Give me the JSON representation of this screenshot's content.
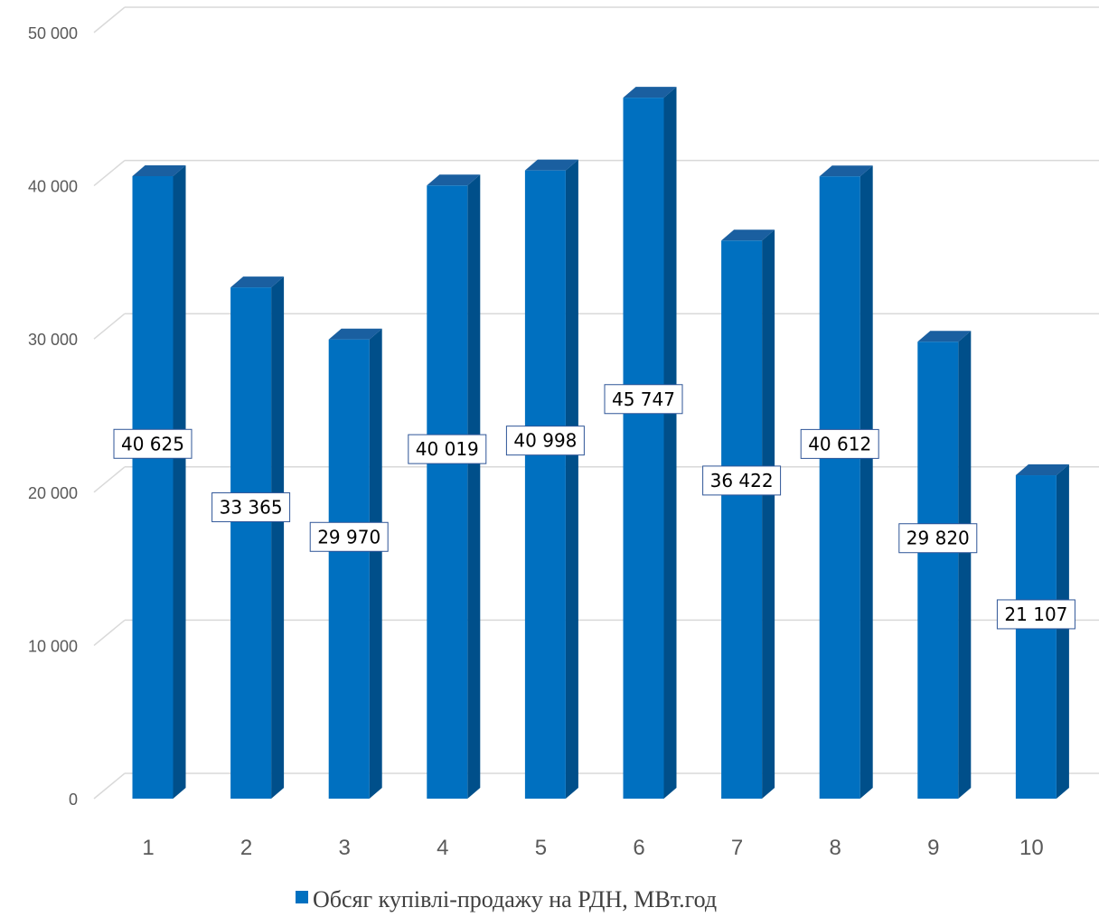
{
  "chart_data": {
    "type": "bar",
    "bar_style": "3d-column",
    "categories": [
      "1",
      "2",
      "3",
      "4",
      "5",
      "6",
      "7",
      "8",
      "9",
      "10"
    ],
    "series": [
      {
        "name": "Обсяг купівлі-продажу на РДН, МВт.год",
        "color": "#0070C0",
        "values": [
          40625,
          33365,
          29970,
          40019,
          40998,
          45747,
          36422,
          40612,
          29820,
          21107
        ],
        "labels": [
          "40 625",
          "33 365",
          "29 970",
          "40 019",
          "40 998",
          "45 747",
          "36 422",
          "40 612",
          "29 820",
          "21 107"
        ]
      }
    ],
    "yticks": [
      0,
      10000,
      20000,
      30000,
      40000,
      50000
    ],
    "ytick_labels": [
      "0",
      "10 000",
      "20 000",
      "30 000",
      "40 000",
      "50 000"
    ],
    "ylim": [
      0,
      50000
    ],
    "grid": true,
    "legend_position": "bottom"
  }
}
